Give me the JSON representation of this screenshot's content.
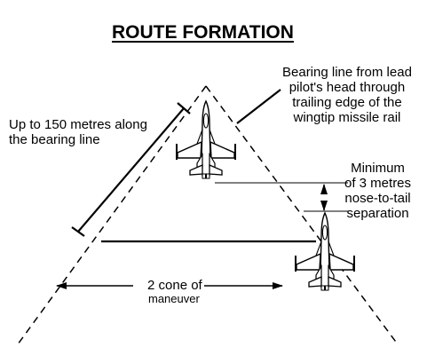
{
  "title": "ROUTE FORMATION",
  "labels": {
    "bearing_line": [
      "Bearing line from lead",
      "pilot's head through",
      "trailing edge of the",
      "wingtip missile rail"
    ],
    "distance": [
      "Up to 150 metres along",
      "the bearing line"
    ],
    "separation": [
      "Minimum",
      "of 3 metres",
      "nose-to-tail",
      "separation"
    ],
    "cone": "2 cone of",
    "cone_2": "maneuver"
  },
  "icons": {
    "aircraft": "fighter-jet-icon",
    "arrow": "arrow-icon"
  },
  "colors": {
    "ink": "#000000",
    "background": "#ffffff"
  }
}
